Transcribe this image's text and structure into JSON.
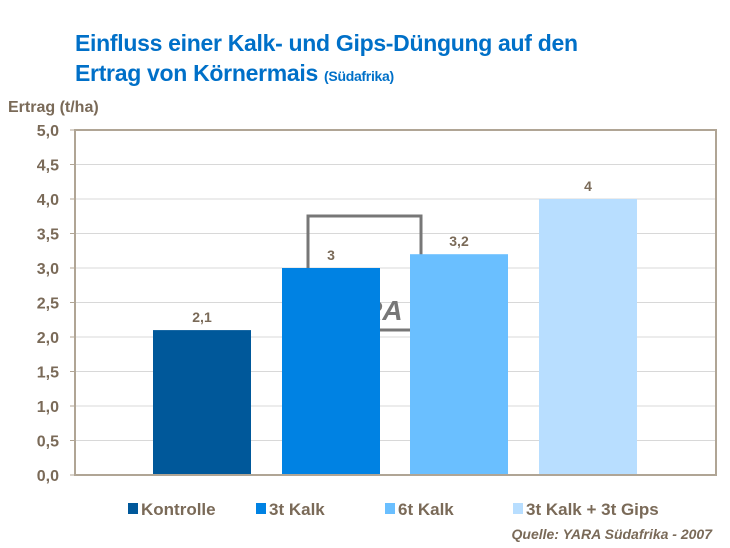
{
  "chart_data": {
    "type": "bar",
    "title_line1": "Einfluss einer Kalk- und Gips-Düngung auf den",
    "title_line2": "Ertrag von Körnermais",
    "title_suffix": "(Südafrika)",
    "ylabel": "Ertrag (t/ha)",
    "ylim": [
      0,
      5
    ],
    "yticks": [
      "0,0",
      "0,5",
      "1,0",
      "1,5",
      "2,0",
      "2,5",
      "3,0",
      "3,5",
      "4,0",
      "4,5",
      "5,0"
    ],
    "grid": true,
    "legend_placement": "bottom",
    "categories": [
      "Kontrolle",
      "3t Kalk",
      "6t Kalk",
      "3t Kalk + 3t Gips"
    ],
    "values": [
      2.1,
      3,
      3.2,
      4
    ],
    "data_labels": [
      "2,1",
      "3",
      "3,2",
      "4"
    ],
    "colors": [
      "#00589a",
      "#0082e3",
      "#6abfff",
      "#b8deff"
    ],
    "source": "Quelle: YARA Südafrika - 2007",
    "watermark": "YARA"
  }
}
